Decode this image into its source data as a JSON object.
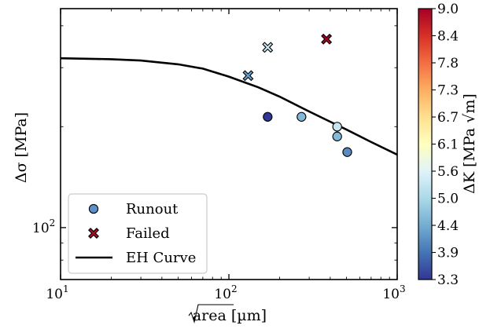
{
  "chart_data": {
    "type": "scatter",
    "xscale": "log",
    "yscale": "log",
    "xlabel": "√area [µm]",
    "ylabel": "Δσ [MPa]",
    "xlim": [
      10,
      1000
    ],
    "ylim": [
      70,
      450
    ],
    "x_ticks": [
      {
        "value": 10,
        "label": "10",
        "exp": "1"
      },
      {
        "value": 100,
        "label": "10",
        "exp": "2"
      },
      {
        "value": 1000,
        "label": "10",
        "exp": "3"
      }
    ],
    "y_ticks": [
      {
        "value": 100,
        "label": "10",
        "exp": "2"
      }
    ],
    "series": [
      {
        "name": "Runout",
        "marker": "circle",
        "points": [
          {
            "x": 170,
            "y": 214,
            "dK": 3.3
          },
          {
            "x": 270,
            "y": 214,
            "dK": 4.6
          },
          {
            "x": 440,
            "y": 200,
            "dK": 5.3
          },
          {
            "x": 440,
            "y": 187,
            "dK": 4.6
          },
          {
            "x": 505,
            "y": 168,
            "dK": 4.1
          }
        ]
      },
      {
        "name": "Failed",
        "marker": "cross",
        "points": [
          {
            "x": 130,
            "y": 284,
            "dK": 4.3
          },
          {
            "x": 170,
            "y": 345,
            "dK": 5.3
          },
          {
            "x": 380,
            "y": 365,
            "dK": 9.0
          }
        ]
      },
      {
        "name": "EH Curve",
        "marker": "line",
        "points": [
          {
            "x": 10,
            "y": 320
          },
          {
            "x": 20,
            "y": 318
          },
          {
            "x": 30,
            "y": 315
          },
          {
            "x": 50,
            "y": 307
          },
          {
            "x": 70,
            "y": 298
          },
          {
            "x": 100,
            "y": 282
          },
          {
            "x": 150,
            "y": 262
          },
          {
            "x": 200,
            "y": 246
          },
          {
            "x": 300,
            "y": 222
          },
          {
            "x": 400,
            "y": 207
          },
          {
            "x": 500,
            "y": 196
          },
          {
            "x": 700,
            "y": 180
          },
          {
            "x": 1000,
            "y": 165
          }
        ]
      }
    ],
    "legend": {
      "placement": "lower-left",
      "entries": [
        {
          "label": "Runout",
          "marker": "circle",
          "color": "#5b8fc8"
        },
        {
          "label": "Failed",
          "marker": "cross",
          "color": "#a50f26"
        },
        {
          "label": "EH Curve",
          "marker": "line",
          "color": "#000000"
        }
      ]
    },
    "colorbar": {
      "label": "ΔK [MPa √m]",
      "colormap": "RdYlBu_r",
      "range": [
        3.3,
        9.0
      ],
      "ticks": [
        "3.3",
        "3.9",
        "4.4",
        "5.0",
        "5.6",
        "6.1",
        "6.7",
        "7.3",
        "7.8",
        "8.4",
        "9.0"
      ]
    },
    "grid": false
  }
}
